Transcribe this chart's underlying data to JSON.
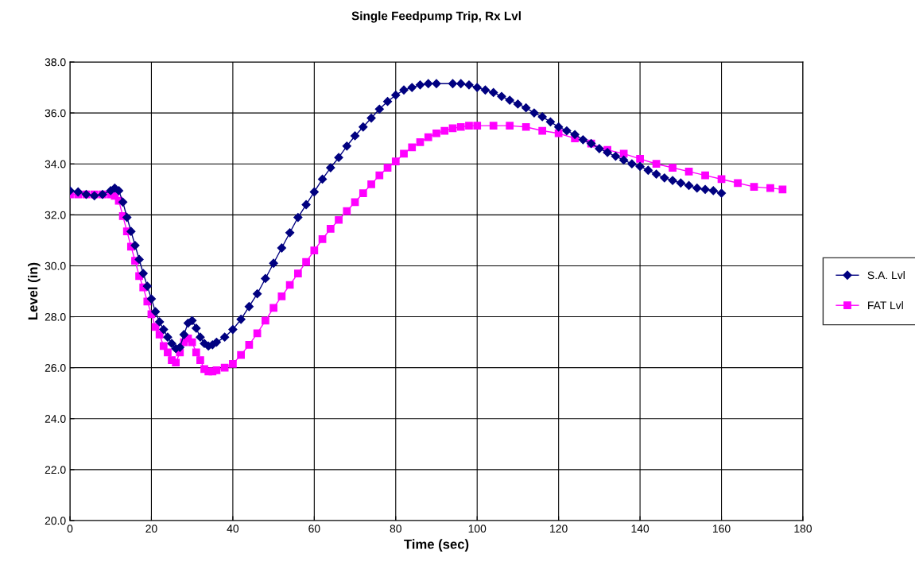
{
  "chart_data": {
    "type": "line",
    "title": "Single Feedpump Trip, Rx Lvl",
    "xlabel": "Time (sec)",
    "ylabel": "Level (in)",
    "xlim": [
      0,
      180
    ],
    "xticks": [
      0,
      20,
      40,
      60,
      80,
      100,
      120,
      140,
      160,
      180
    ],
    "ylim": [
      20,
      38
    ],
    "yticks": [
      {
        "value": 20,
        "label": "20.0"
      },
      {
        "value": 22,
        "label": "22.0"
      },
      {
        "value": 24,
        "label": "24.0"
      },
      {
        "value": 26,
        "label": "26.0"
      },
      {
        "value": 28,
        "label": "28.0"
      },
      {
        "value": 30,
        "label": "30.0"
      },
      {
        "value": 32,
        "label": "32.0"
      },
      {
        "value": 34,
        "label": "34.0"
      },
      {
        "value": 36,
        "label": "36.0"
      },
      {
        "value": 38,
        "label": "38.0"
      }
    ],
    "grid": true,
    "legend": "right",
    "line_style": "solid",
    "series": [
      {
        "name": "S.A. Lvl",
        "color": "#000080",
        "marker": "diamond",
        "x": [
          0,
          2,
          4,
          6,
          8,
          10,
          11,
          12,
          13,
          14,
          15,
          16,
          17,
          18,
          19,
          20,
          21,
          22,
          23,
          24,
          25,
          26,
          27,
          28,
          29,
          30,
          31,
          32,
          33,
          34,
          35,
          36,
          38,
          40,
          42,
          44,
          46,
          48,
          50,
          52,
          54,
          56,
          58,
          60,
          62,
          64,
          66,
          68,
          70,
          72,
          74,
          76,
          78,
          80,
          82,
          84,
          86,
          88,
          90,
          94,
          96,
          98,
          100,
          102,
          104,
          106,
          108,
          110,
          112,
          114,
          116,
          118,
          120,
          122,
          124,
          126,
          128,
          130,
          132,
          134,
          136,
          138,
          140,
          142,
          144,
          146,
          148,
          150,
          152,
          154,
          156,
          158,
          160
        ],
        "values": [
          32.95,
          32.9,
          32.8,
          32.75,
          32.8,
          32.95,
          33.05,
          32.95,
          32.5,
          31.9,
          31.35,
          30.8,
          30.25,
          29.7,
          29.2,
          28.7,
          28.2,
          27.8,
          27.5,
          27.2,
          26.95,
          26.75,
          26.8,
          27.3,
          27.75,
          27.85,
          27.55,
          27.2,
          26.95,
          26.85,
          26.9,
          27.0,
          27.2,
          27.5,
          27.9,
          28.4,
          28.9,
          29.5,
          30.1,
          30.7,
          31.3,
          31.9,
          32.4,
          32.9,
          33.4,
          33.85,
          34.25,
          34.7,
          35.1,
          35.45,
          35.8,
          36.15,
          36.45,
          36.7,
          36.9,
          37.0,
          37.1,
          37.15,
          37.15,
          37.15,
          37.15,
          37.1,
          37.0,
          36.9,
          36.8,
          36.65,
          36.5,
          36.35,
          36.2,
          36.0,
          35.85,
          35.65,
          35.45,
          35.3,
          35.15,
          34.95,
          34.8,
          34.6,
          34.45,
          34.3,
          34.15,
          34.0,
          33.9,
          33.75,
          33.6,
          33.45,
          33.35,
          33.25,
          33.15,
          33.05,
          33.0,
          32.95,
          32.85
        ]
      },
      {
        "name": "FAT Lvl",
        "color": "#ff00ff",
        "marker": "square",
        "x": [
          0,
          2,
          4,
          6,
          8,
          10,
          11,
          12,
          13,
          14,
          15,
          16,
          17,
          18,
          19,
          20,
          21,
          22,
          23,
          24,
          25,
          26,
          27,
          28,
          29,
          30,
          31,
          32,
          33,
          34,
          35,
          36,
          38,
          40,
          42,
          44,
          46,
          48,
          50,
          52,
          54,
          56,
          58,
          60,
          62,
          64,
          66,
          68,
          70,
          72,
          74,
          76,
          78,
          80,
          82,
          84,
          86,
          88,
          90,
          92,
          94,
          96,
          98,
          100,
          104,
          108,
          112,
          116,
          120,
          124,
          128,
          132,
          136,
          140,
          144,
          148,
          152,
          156,
          160,
          164,
          168,
          172,
          175
        ],
        "values": [
          32.8,
          32.8,
          32.8,
          32.8,
          32.8,
          32.8,
          32.75,
          32.55,
          31.95,
          31.35,
          30.75,
          30.2,
          29.6,
          29.15,
          28.6,
          28.1,
          27.6,
          27.3,
          26.85,
          26.6,
          26.3,
          26.2,
          26.6,
          27.0,
          27.15,
          27.0,
          26.6,
          26.3,
          25.95,
          25.85,
          25.85,
          25.9,
          26.0,
          26.15,
          26.5,
          26.9,
          27.35,
          27.85,
          28.35,
          28.8,
          29.25,
          29.7,
          30.15,
          30.6,
          31.05,
          31.45,
          31.8,
          32.15,
          32.5,
          32.85,
          33.2,
          33.55,
          33.85,
          34.1,
          34.4,
          34.65,
          34.85,
          35.05,
          35.2,
          35.3,
          35.4,
          35.45,
          35.5,
          35.5,
          35.5,
          35.5,
          35.45,
          35.3,
          35.2,
          35.0,
          34.8,
          34.55,
          34.4,
          34.2,
          34.0,
          33.85,
          33.7,
          33.55,
          33.4,
          33.25,
          33.1,
          33.05,
          33.0
        ]
      }
    ]
  }
}
